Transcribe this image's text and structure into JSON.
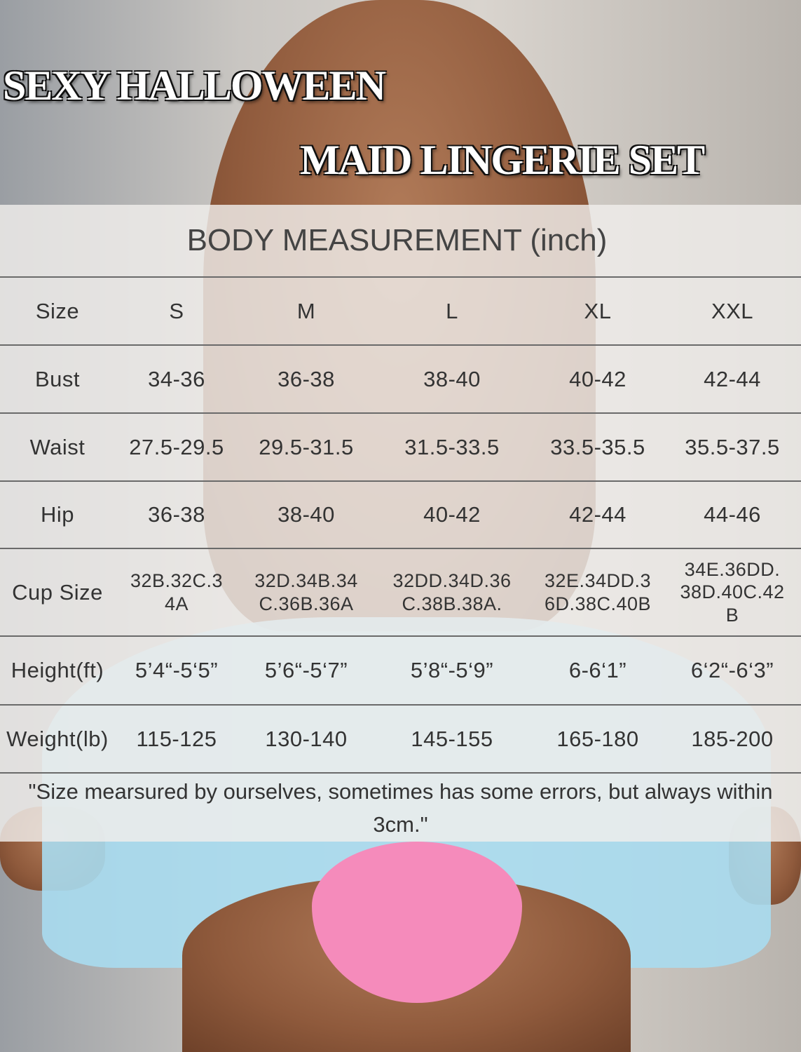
{
  "header": {
    "title_line1": "SEXY HALLOWEEN",
    "title_line2": "MAID LINGERIE SET"
  },
  "table": {
    "caption": "BODY MEASUREMENT (inch)",
    "rows": [
      [
        "Size",
        "S",
        "M",
        "L",
        "XL",
        "XXL"
      ],
      [
        "Bust",
        "34-36",
        "36-38",
        "38-40",
        "40-42",
        "42-44"
      ],
      [
        "Waist",
        "27.5-29.5",
        "29.5-31.5",
        "31.5-33.5",
        "33.5-35.5",
        "35.5-37.5"
      ],
      [
        "Hip",
        "36-38",
        "38-40",
        "40-42",
        "42-44",
        "44-46"
      ],
      [
        "Cup Size",
        "32B.32C.3\n4A",
        "32D.34B.34\nC.36B.36A",
        "32DD.34D.36\nC.38B.38A.",
        "32E.34DD.3\n6D.38C.40B",
        "34E.36DD.\n38D.40C.42\nB"
      ],
      [
        "Height(ft)",
        "5’4“-5‘5”",
        "5’6“-5‘7”",
        "5’8“-5‘9”",
        "6-6‘1”",
        "6‘2“-6‘3”"
      ],
      [
        "Weight(lb)",
        "115-125",
        "130-140",
        "145-155",
        "165-180",
        "185-200"
      ]
    ]
  },
  "note": "\"Size mearsured by ourselves, sometimes has some errors, but always within 3cm.\""
}
